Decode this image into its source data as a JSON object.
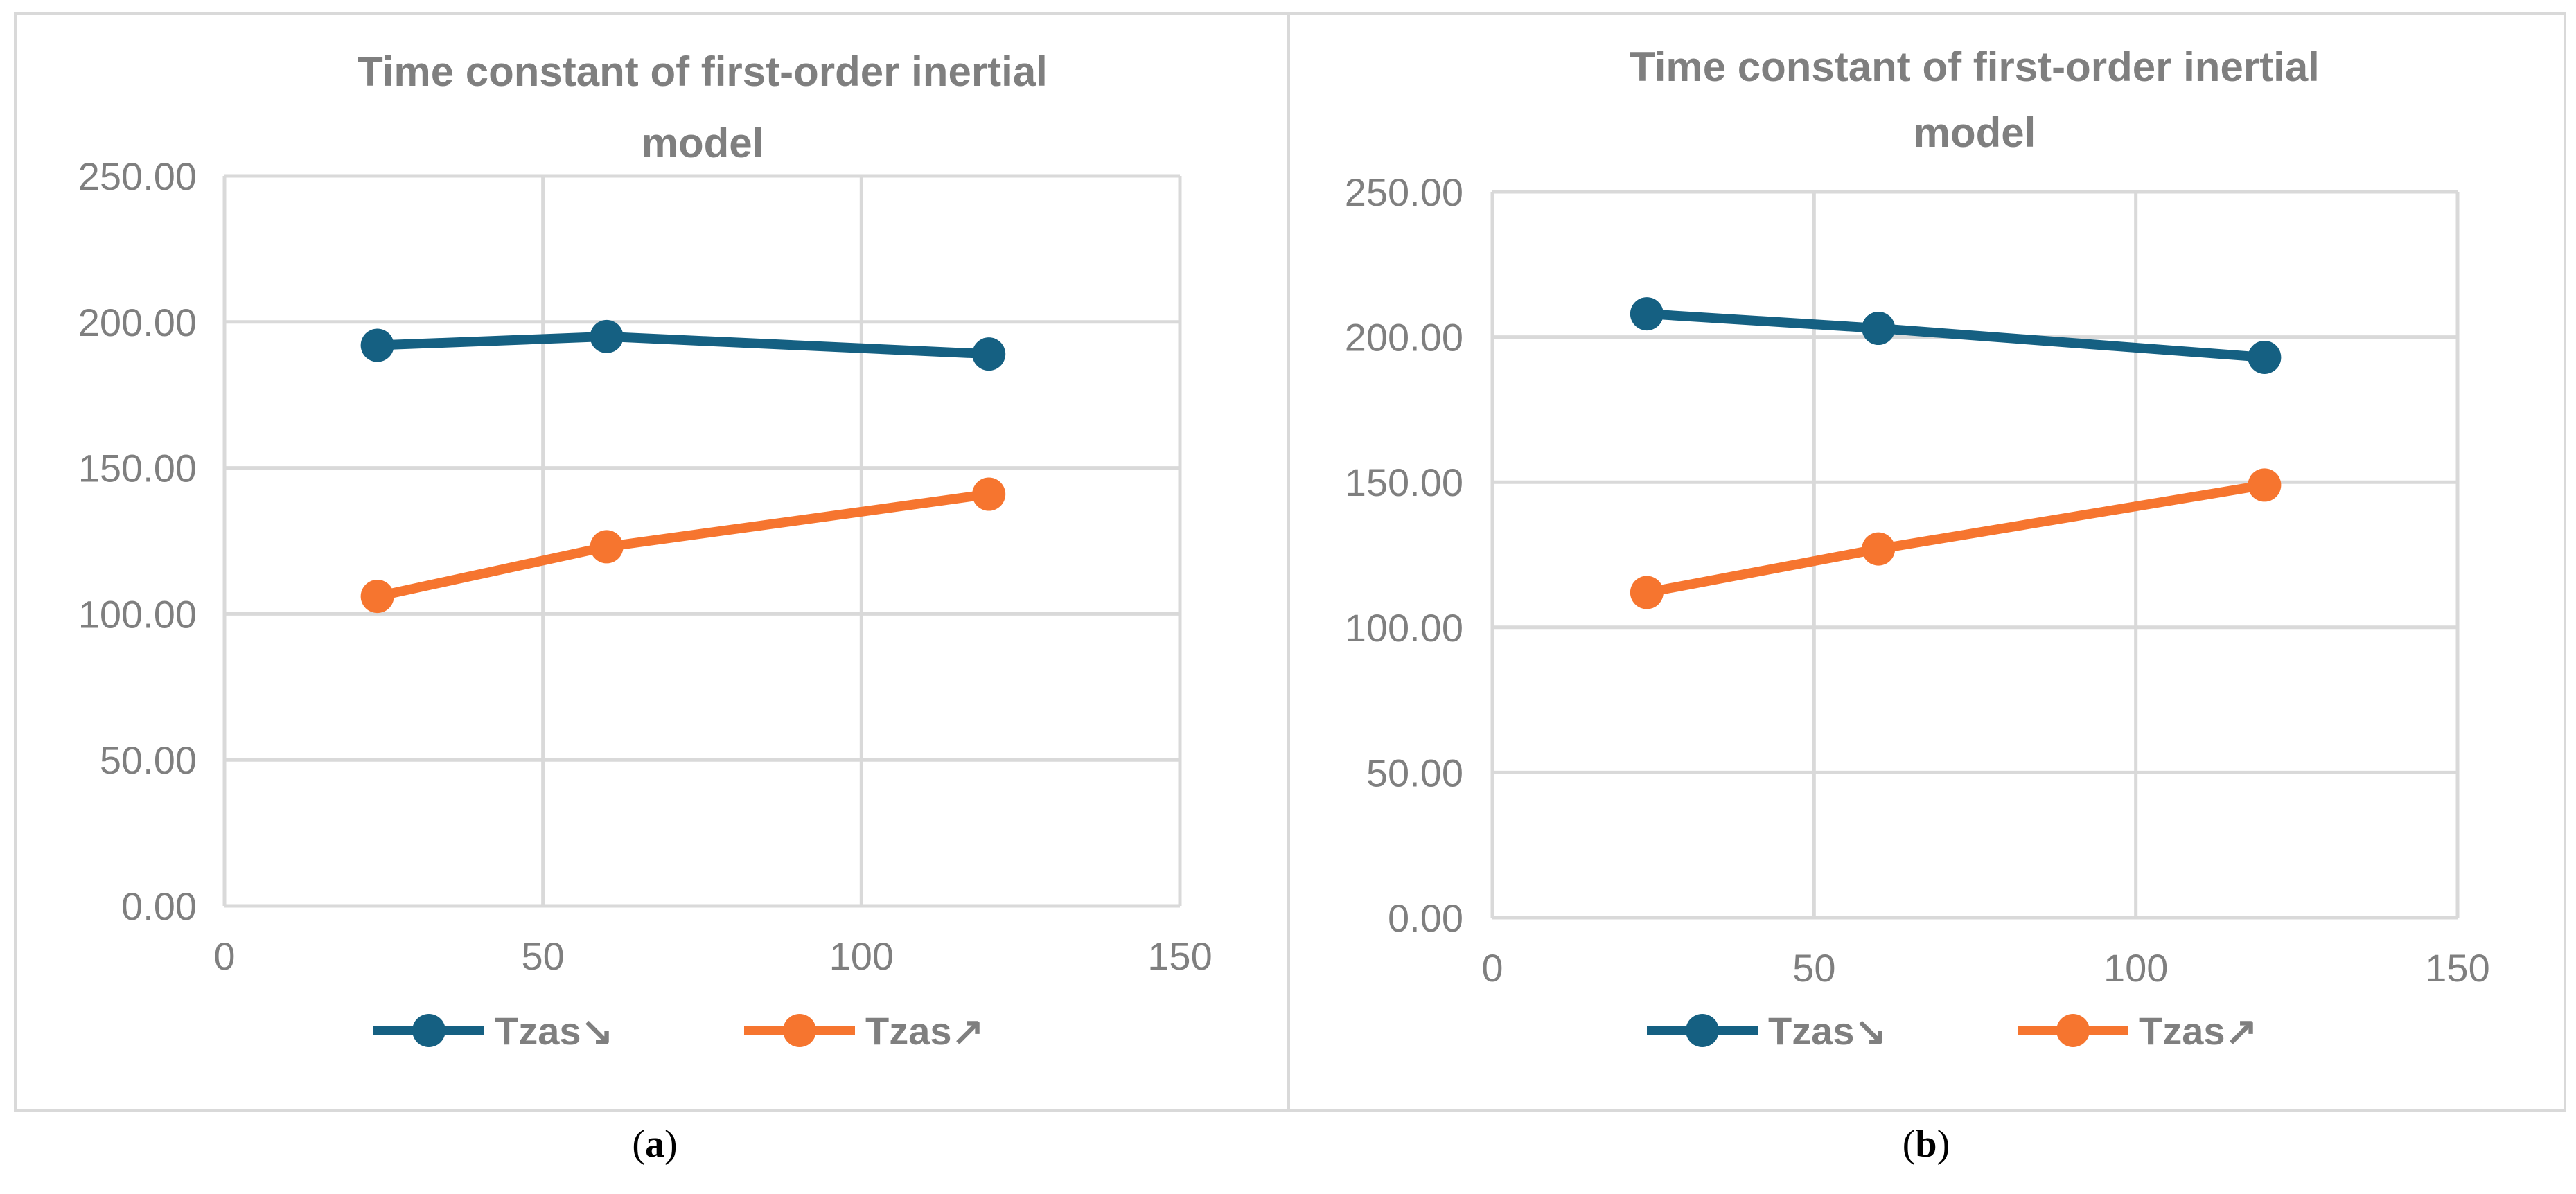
{
  "captions": [
    {
      "prefix": "(",
      "letter": "a",
      "suffix": ")"
    },
    {
      "prefix": "(",
      "letter": "b",
      "suffix": ")"
    }
  ],
  "chart_data": [
    {
      "type": "line",
      "title_lines": [
        "Time constant of first-order inertial",
        "model"
      ],
      "xlim": [
        0,
        150
      ],
      "ylim": [
        0,
        250
      ],
      "x_ticks": [
        0,
        50,
        100,
        150
      ],
      "y_ticks": [
        "0.00",
        "50.00",
        "100.00",
        "150.00",
        "200.00",
        "250.00"
      ],
      "grid": true,
      "legend_position": "bottom",
      "series": [
        {
          "name": "Tzas↘",
          "color": "#156082",
          "x": [
            24,
            60,
            120
          ],
          "y": [
            192,
            195,
            189
          ]
        },
        {
          "name": "Tzas↗",
          "color": "#f6752f",
          "x": [
            24,
            60,
            120
          ],
          "y": [
            106,
            123,
            141
          ]
        }
      ]
    },
    {
      "type": "line",
      "title_lines": [
        "Time constant of first-order inertial",
        "model"
      ],
      "xlim": [
        0,
        150
      ],
      "ylim": [
        0,
        250
      ],
      "x_ticks": [
        0,
        50,
        100,
        150
      ],
      "y_ticks": [
        "0.00",
        "50.00",
        "100.00",
        "150.00",
        "200.00",
        "250.00"
      ],
      "grid": true,
      "legend_position": "bottom",
      "series": [
        {
          "name": "Tzas↘",
          "color": "#156082",
          "x": [
            24,
            60,
            120
          ],
          "y": [
            208,
            203,
            193
          ]
        },
        {
          "name": "Tzas↗",
          "color": "#f6752f",
          "x": [
            24,
            60,
            120
          ],
          "y": [
            112,
            127,
            149
          ]
        }
      ]
    }
  ]
}
